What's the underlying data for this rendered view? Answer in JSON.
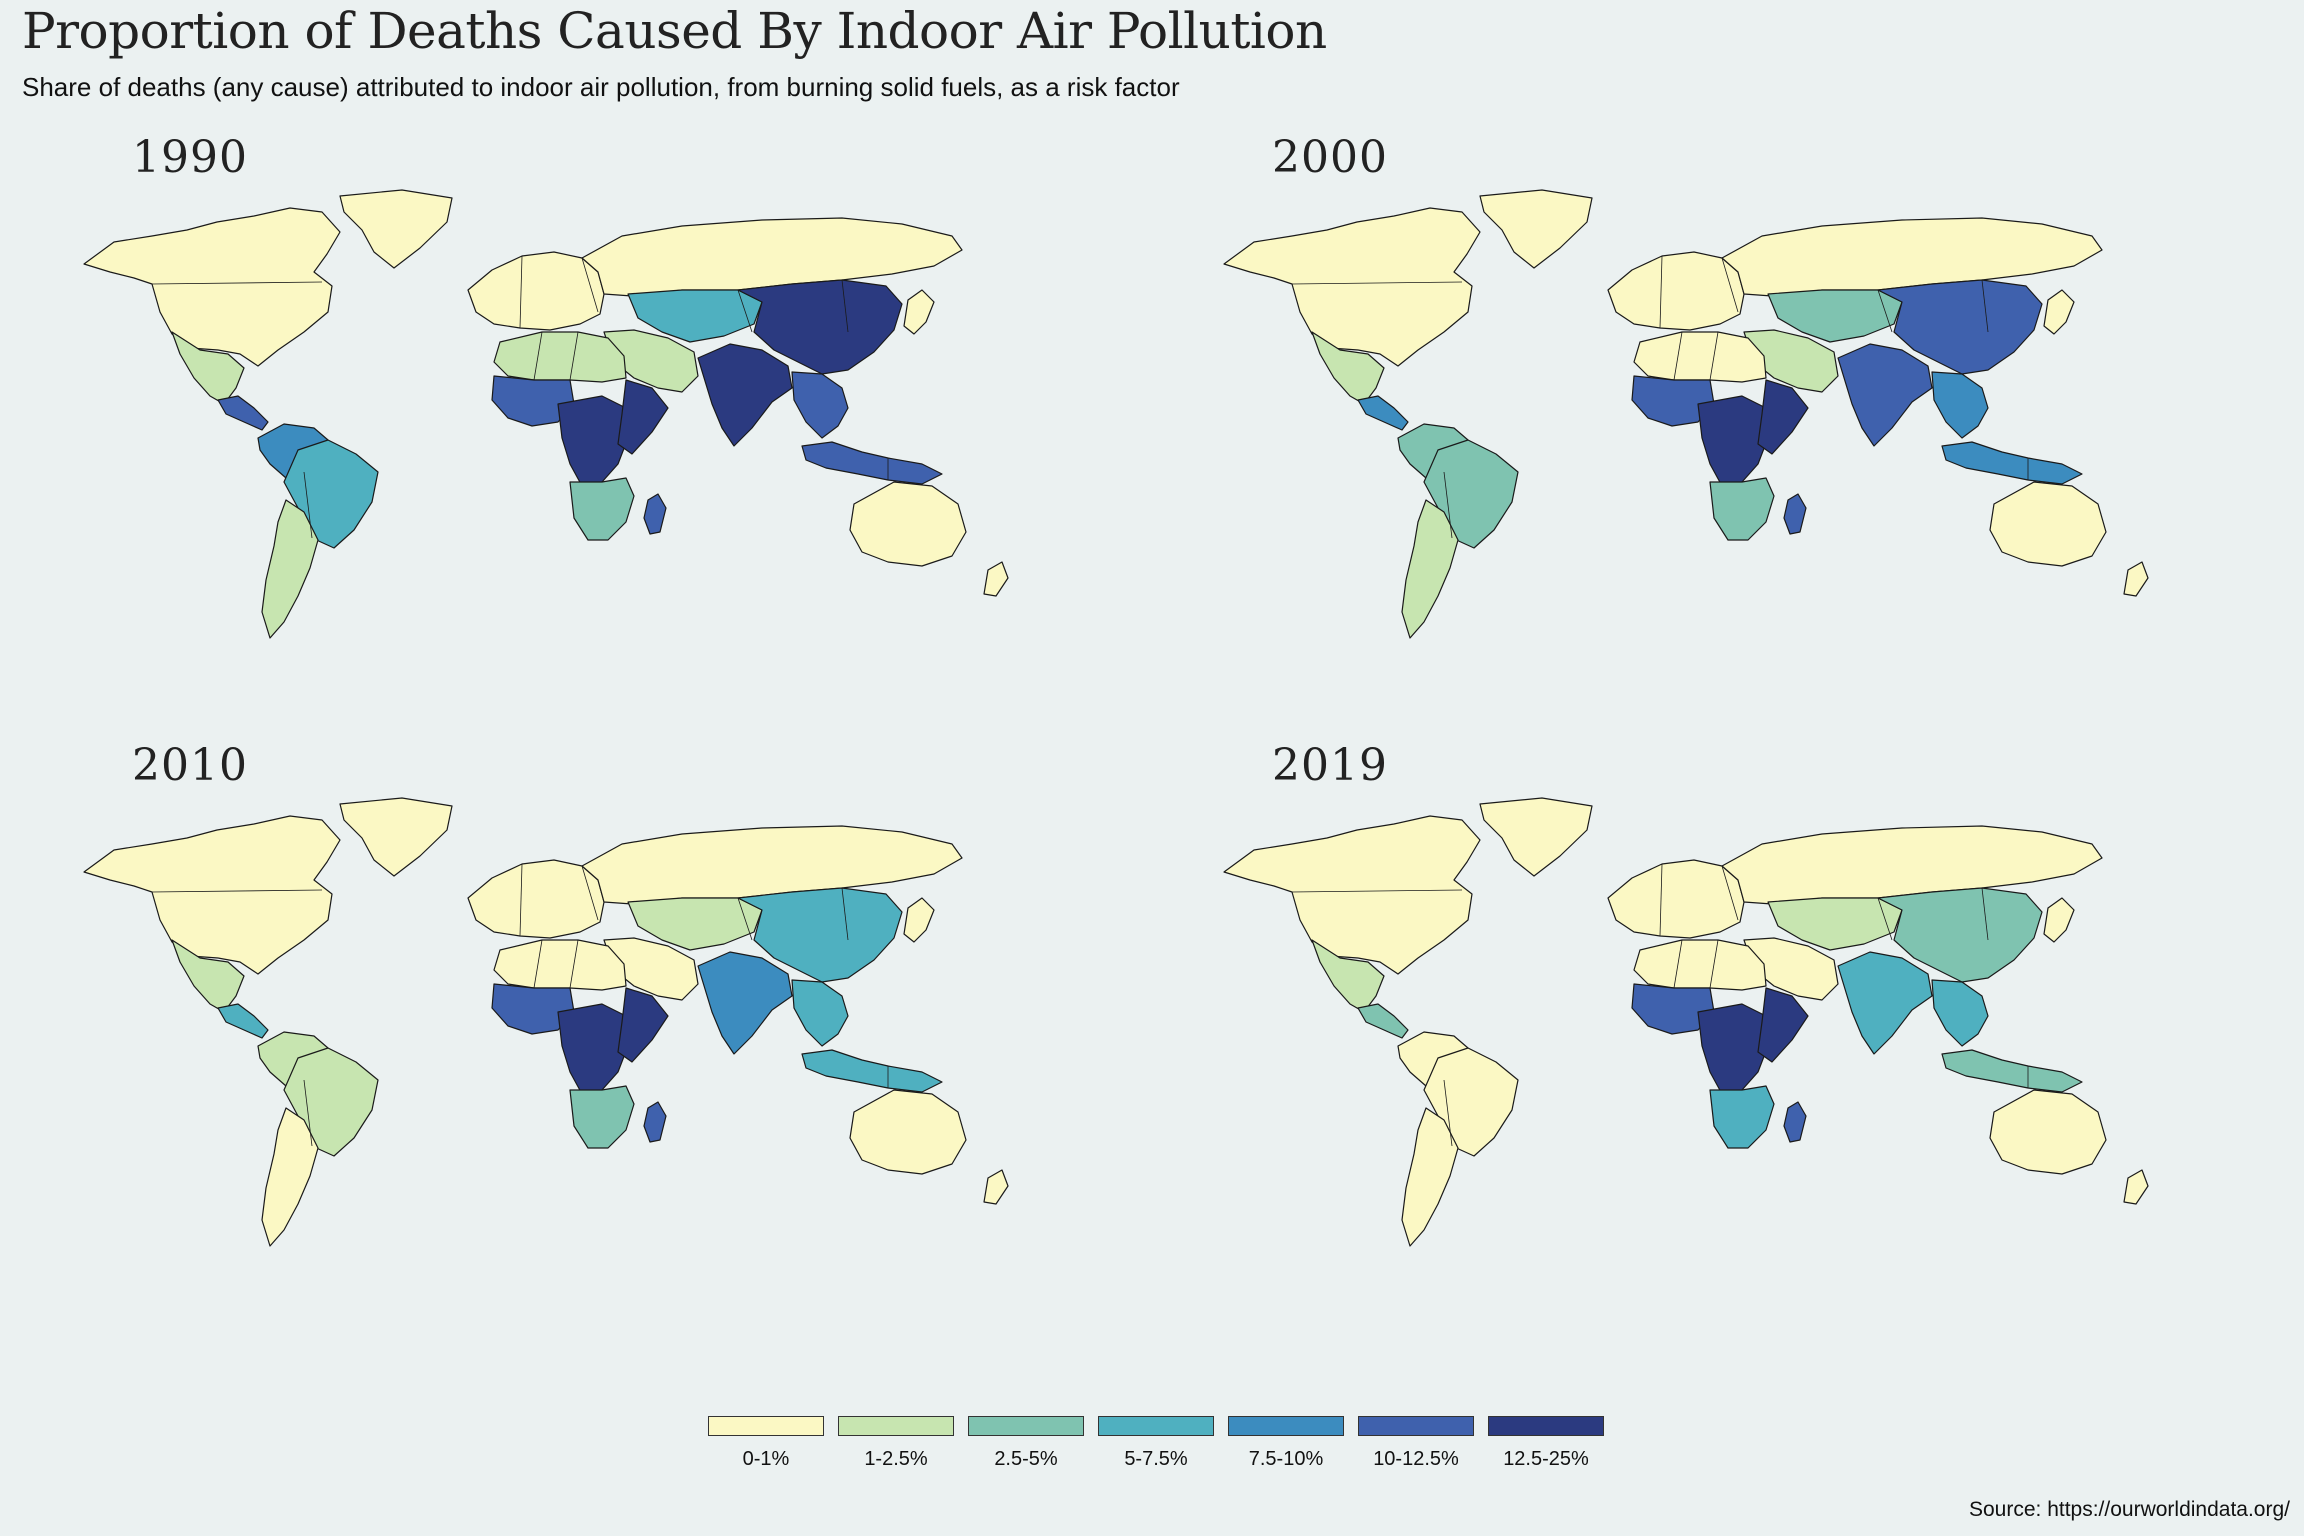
{
  "title": "Proportion of Deaths Caused By Indoor Air Pollution",
  "subtitle": "Share of deaths (any cause) attributed to indoor air pollution, from burning solid fuels, as a risk factor",
  "source": "Source: https://ourworldindata.org/",
  "legend": [
    {
      "label": "0-1%",
      "color": "#fbf8c4"
    },
    {
      "label": "1-2.5%",
      "color": "#c7e5b0"
    },
    {
      "label": "2.5-5%",
      "color": "#7fc3b0"
    },
    {
      "label": "5-7.5%",
      "color": "#4fb0c0"
    },
    {
      "label": "7.5-10%",
      "color": "#3c8cbf"
    },
    {
      "label": "10-12.5%",
      "color": "#3f61ad"
    },
    {
      "label": "12.5-25%",
      "color": "#2b3a80"
    }
  ],
  "panels": [
    {
      "year": "1990",
      "regions": {
        "north_america": 0,
        "greenland": 0,
        "mexico": 1,
        "central_america": 5,
        "south_america_north": 4,
        "brazil": 3,
        "south_america_south": 1,
        "europe": 0,
        "russia": 0,
        "north_africa": 1,
        "west_africa": 5,
        "central_africa": 6,
        "east_africa": 6,
        "southern_africa": 2,
        "madagascar": 5,
        "middle_east": 1,
        "central_asia": 3,
        "china": 6,
        "south_asia": 6,
        "southeast_asia": 5,
        "indonesia": 5,
        "australia": 0,
        "new_zealand": 0,
        "japan": 0
      }
    },
    {
      "year": "2000",
      "regions": {
        "north_america": 0,
        "greenland": 0,
        "mexico": 1,
        "central_america": 4,
        "south_america_north": 2,
        "brazil": 2,
        "south_america_south": 1,
        "europe": 0,
        "russia": 0,
        "north_africa": 0,
        "west_africa": 5,
        "central_africa": 6,
        "east_africa": 6,
        "southern_africa": 2,
        "madagascar": 5,
        "middle_east": 1,
        "central_asia": 2,
        "china": 5,
        "south_asia": 5,
        "southeast_asia": 4,
        "indonesia": 4,
        "australia": 0,
        "new_zealand": 0,
        "japan": 0
      }
    },
    {
      "year": "2010",
      "regions": {
        "north_america": 0,
        "greenland": 0,
        "mexico": 1,
        "central_america": 3,
        "south_america_north": 1,
        "brazil": 1,
        "south_america_south": 0,
        "europe": 0,
        "russia": 0,
        "north_africa": 0,
        "west_africa": 5,
        "central_africa": 6,
        "east_africa": 6,
        "southern_africa": 2,
        "madagascar": 5,
        "middle_east": 0,
        "central_asia": 1,
        "china": 3,
        "south_asia": 4,
        "southeast_asia": 3,
        "indonesia": 3,
        "australia": 0,
        "new_zealand": 0,
        "japan": 0
      }
    },
    {
      "year": "2019",
      "regions": {
        "north_america": 0,
        "greenland": 0,
        "mexico": 1,
        "central_america": 2,
        "south_america_north": 0,
        "brazil": 0,
        "south_america_south": 0,
        "europe": 0,
        "russia": 0,
        "north_africa": 0,
        "west_africa": 5,
        "central_africa": 6,
        "east_africa": 6,
        "southern_africa": 3,
        "madagascar": 5,
        "middle_east": 0,
        "central_asia": 1,
        "china": 2,
        "south_asia": 3,
        "southeast_asia": 3,
        "indonesia": 2,
        "australia": 0,
        "new_zealand": 0,
        "japan": 0
      }
    }
  ]
}
